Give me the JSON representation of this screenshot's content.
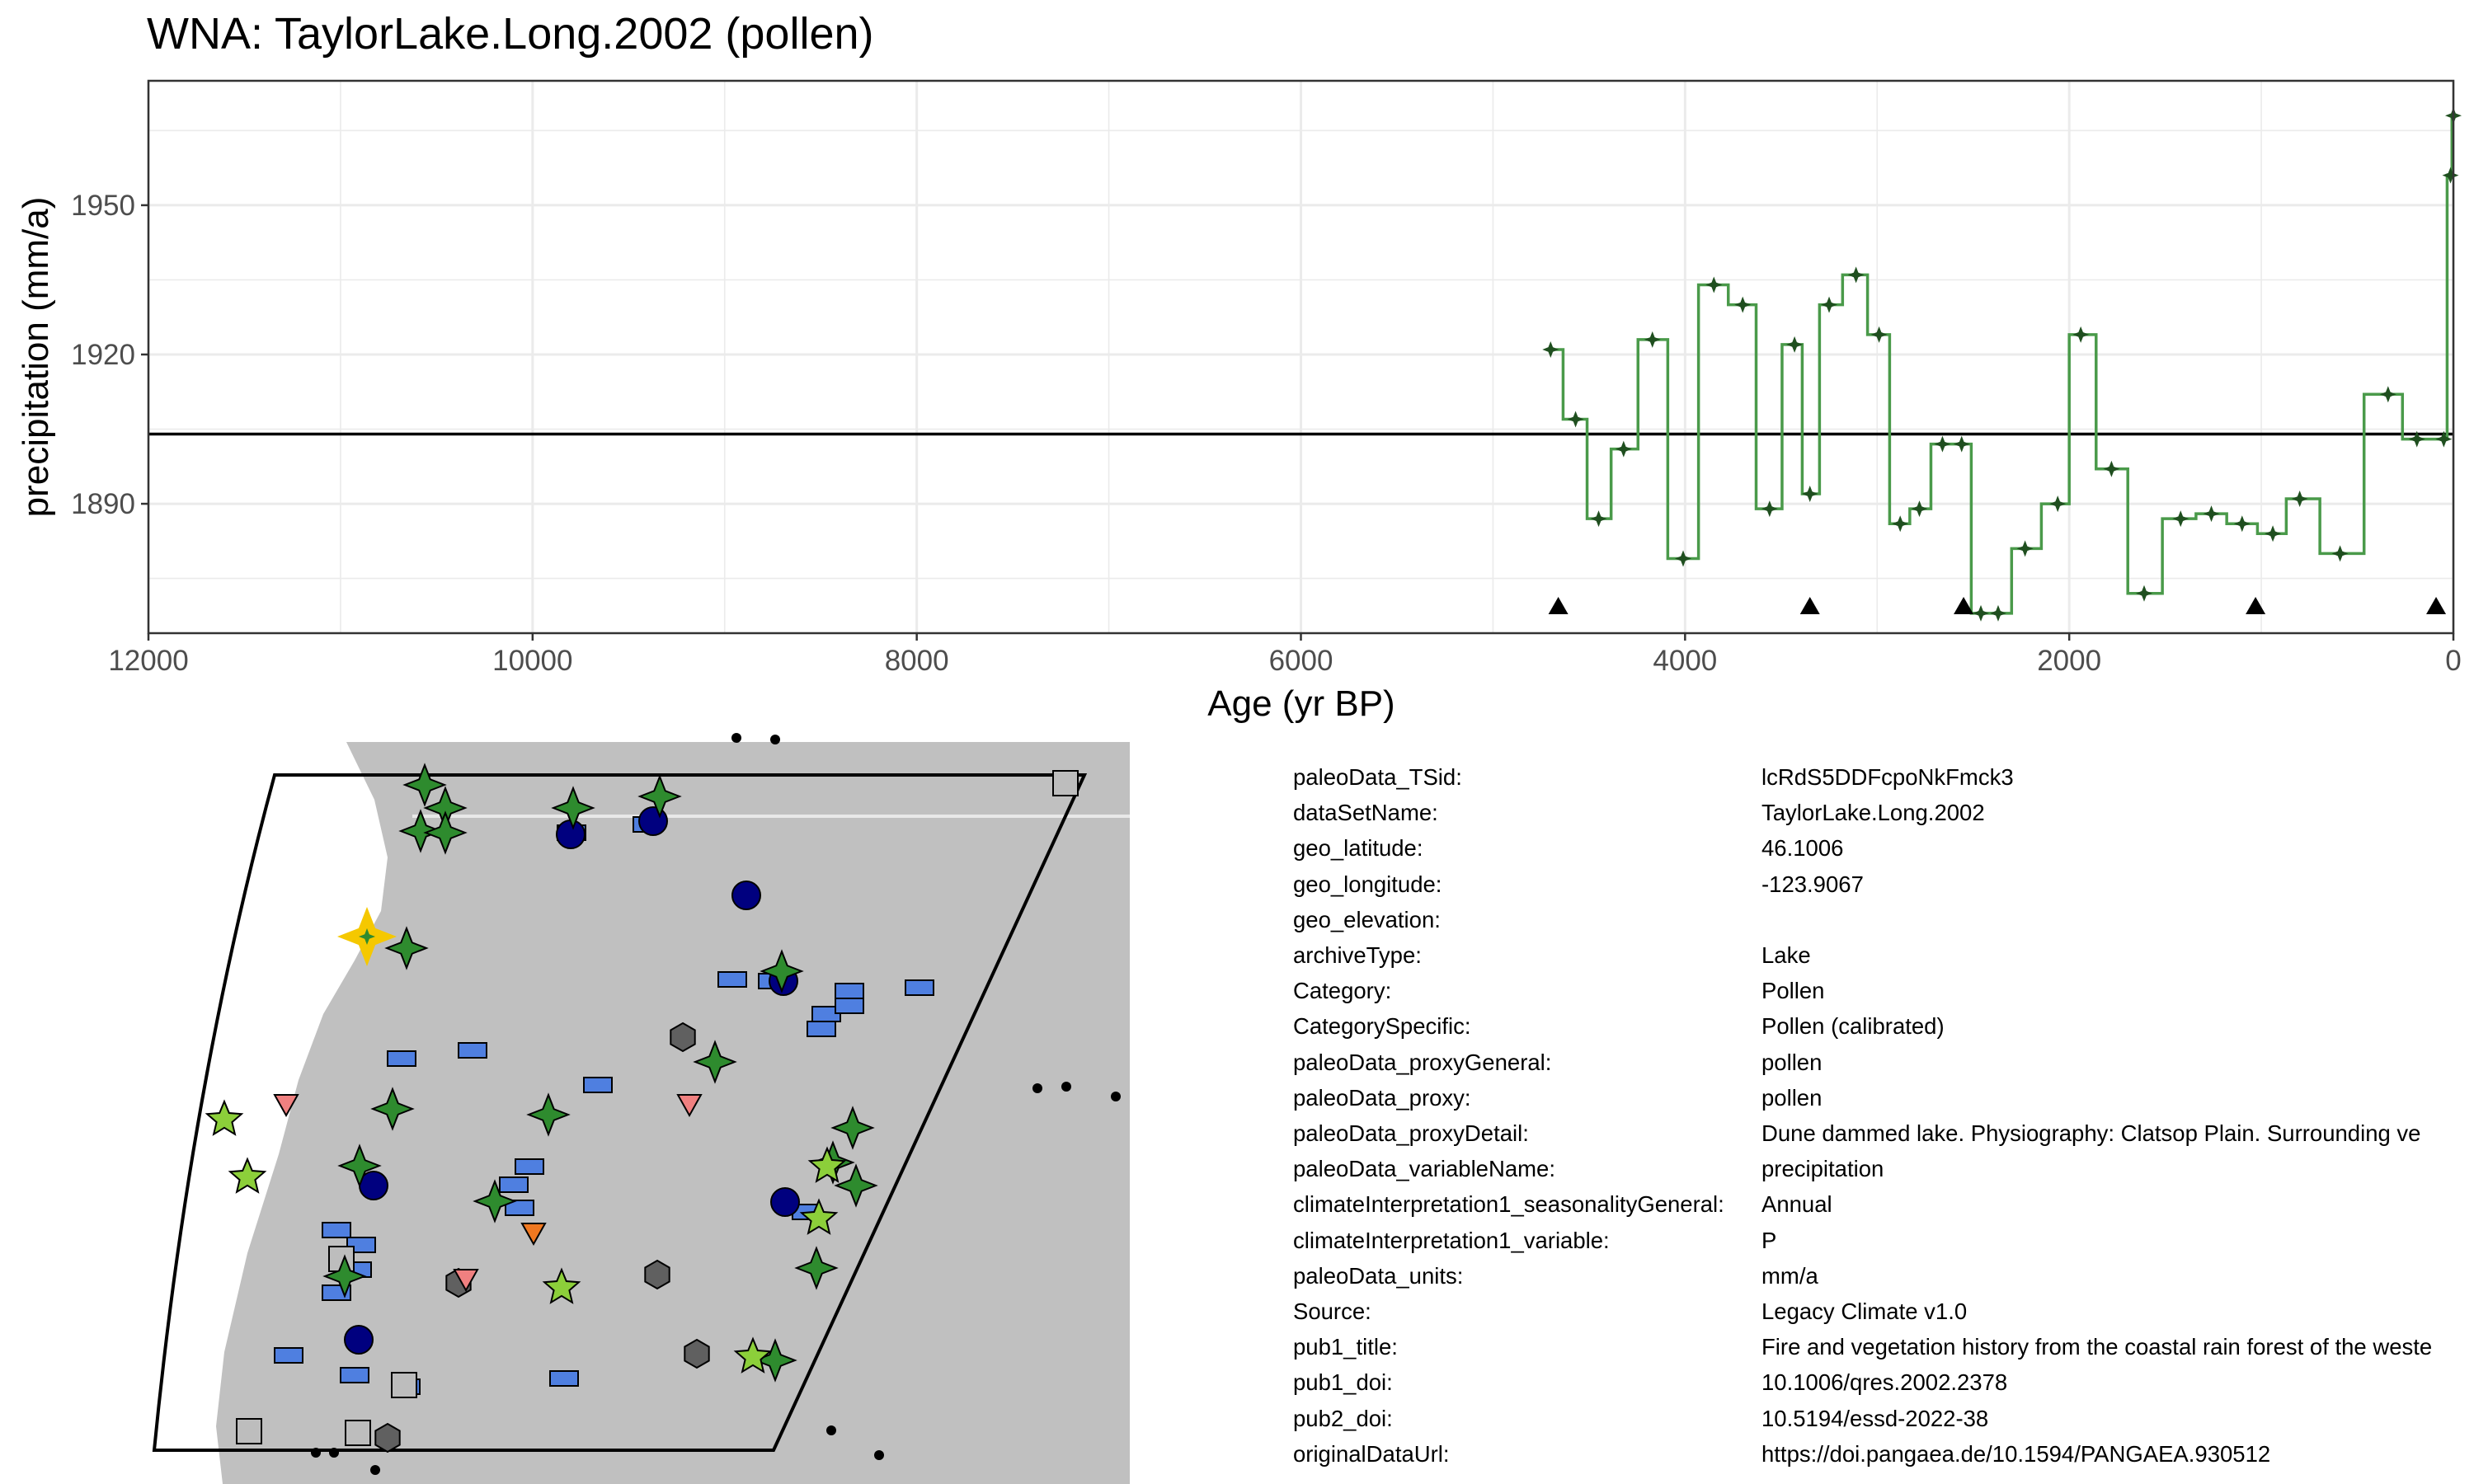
{
  "chart_data": {
    "type": "line",
    "title": "WNA: TaylorLake.Long.2002 (pollen)",
    "xlabel": "Age (yr BP)",
    "ylabel": "precipitation (mm/a)",
    "x_reversed": true,
    "xlim": [
      12000,
      0
    ],
    "ylim": [
      1864,
      1975
    ],
    "x_ticks": [
      12000,
      10000,
      8000,
      6000,
      4000,
      2000,
      0
    ],
    "y_ticks": [
      1890,
      1920,
      1950
    ],
    "grid": true,
    "reference_line": 1904,
    "series": [
      {
        "style": "step",
        "color": "#4a9a4a",
        "marker_color": "#1f4f1f",
        "x": [
          4700,
          4570,
          4450,
          4320,
          4170,
          4010,
          3850,
          3700,
          3560,
          3430,
          3350,
          3250,
          3110,
          2990,
          2880,
          2780,
          2660,
          2560,
          2460,
          2370,
          2230,
          2060,
          1940,
          1780,
          1610,
          1420,
          1260,
          1100,
          940,
          800,
          590,
          340,
          190,
          50,
          15,
          0
        ],
        "y": [
          1921,
          1907,
          1887,
          1901,
          1923,
          1879,
          1934,
          1930,
          1889,
          1922,
          1892,
          1930,
          1936,
          1924,
          1886,
          1889,
          1902,
          1902,
          1868,
          1868,
          1881,
          1890,
          1924,
          1897,
          1872,
          1887,
          1888,
          1886,
          1884,
          1891,
          1880,
          1912,
          1903,
          1903,
          1956,
          1968
        ]
      }
    ],
    "age_markers": {
      "shape": "triangle",
      "x": [
        4660,
        3350,
        2550,
        1030,
        90
      ]
    }
  },
  "metadata": {
    "rows": [
      {
        "key": "paleoData_TSid:",
        "value": "lcRdS5DDFcpoNkFmck3"
      },
      {
        "key": "dataSetName:",
        "value": "TaylorLake.Long.2002"
      },
      {
        "key": "geo_latitude:",
        "value": "46.1006"
      },
      {
        "key": "geo_longitude:",
        "value": "-123.9067"
      },
      {
        "key": "geo_elevation:",
        "value": ""
      },
      {
        "key": "archiveType:",
        "value": "Lake"
      },
      {
        "key": "Category:",
        "value": "Pollen"
      },
      {
        "key": "CategorySpecific:",
        "value": "Pollen (calibrated)"
      },
      {
        "key": "paleoData_proxyGeneral:",
        "value": "pollen"
      },
      {
        "key": "paleoData_proxy:",
        "value": "pollen"
      },
      {
        "key": "paleoData_proxyDetail:",
        "value": "Dune dammed lake. Physiography: Clatsop Plain. Surrounding ve"
      },
      {
        "key": "paleoData_variableName:",
        "value": "precipitation"
      },
      {
        "key": "climateInterpretation1_seasonalityGeneral:",
        "value": "Annual"
      },
      {
        "key": "climateInterpretation1_variable:",
        "value": "P"
      },
      {
        "key": "paleoData_units:",
        "value": "mm/a"
      },
      {
        "key": "Source:",
        "value": "Legacy Climate v1.0"
      },
      {
        "key": "pub1_title:",
        "value": "Fire and vegetation history from the coastal rain forest of the weste"
      },
      {
        "key": "pub1_doi:",
        "value": "10.1006/qres.2002.2378"
      },
      {
        "key": "pub2_doi:",
        "value": "10.5194/essd-2022-38"
      },
      {
        "key": "originalDataUrl:",
        "value": "https://doi.pangaea.de/10.1594/PANGAEA.930512"
      }
    ]
  },
  "map": {
    "land_color": "#c0c0c0",
    "highlight_color": "#f5c800",
    "legend_colors": {
      "pollen": "#2e8b2e",
      "other_star": "#8ccf3a",
      "circle": "#00007f",
      "rect": "#4f7fe0",
      "hexagon": "#606060",
      "square": "#bdbdbd",
      "triangle": "#f08080",
      "orange": "#f07820"
    }
  }
}
